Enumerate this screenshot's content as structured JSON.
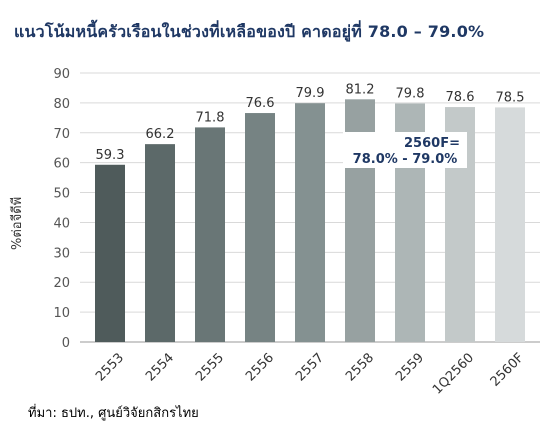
{
  "chart_data": {
    "type": "bar",
    "title": "แนวโน้มหนี้ครัวเรือนในช่วงที่เหลือของปี คาดอยู่ที่ 78.0 – 79.0%",
    "ylabel": "%ต่อจีดีพี",
    "xlabel": "",
    "ylim": [
      0,
      90
    ],
    "yticks": [
      0,
      10,
      20,
      30,
      40,
      50,
      60,
      70,
      80,
      90
    ],
    "grid": true,
    "categories": [
      "2553",
      "2554",
      "2555",
      "2556",
      "2557",
      "2558",
      "2559",
      "1Q2560",
      "2560F"
    ],
    "values": [
      59.3,
      66.2,
      71.8,
      76.6,
      79.9,
      81.2,
      79.8,
      78.6,
      78.5
    ],
    "bar_colors": [
      "#4f5b5b",
      "#5c6969",
      "#697676",
      "#768383",
      "#849191",
      "#97a1a1",
      "#adb6b6",
      "#c3c9c9",
      "#d6dadb"
    ],
    "annotation": {
      "line1": "2560F=",
      "line2": "78.0% - 79.0%",
      "color": "#1f3864"
    }
  },
  "source": "ที่มา: ธปท., ศูนย์วิจัยกสิกรไทย"
}
